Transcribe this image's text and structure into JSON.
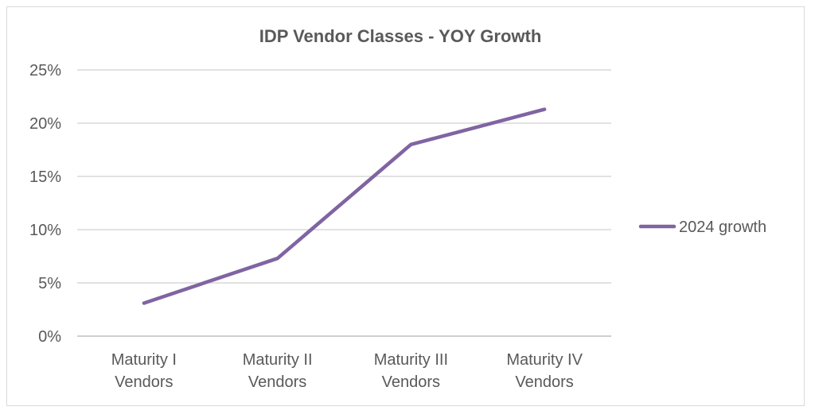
{
  "chart_data": {
    "type": "line",
    "title": "IDP Vendor Classes - YOY Growth",
    "xlabel": "",
    "ylabel": "",
    "categories": [
      [
        "Maturity I",
        "Vendors"
      ],
      [
        "Maturity II",
        "Vendors"
      ],
      [
        "Maturity III",
        "Vendors"
      ],
      [
        "Maturity IV",
        "Vendors"
      ]
    ],
    "series": [
      {
        "name": "2024 growth",
        "color": "#8064a2",
        "values": [
          3.1,
          7.3,
          18.0,
          21.3
        ]
      }
    ],
    "ylim": [
      0,
      25
    ],
    "yticks": [
      0,
      5,
      10,
      15,
      20,
      25
    ],
    "ytick_labels": [
      "0%",
      "5%",
      "10%",
      "15%",
      "20%",
      "25%"
    ],
    "grid": true,
    "legend_position": "right"
  }
}
